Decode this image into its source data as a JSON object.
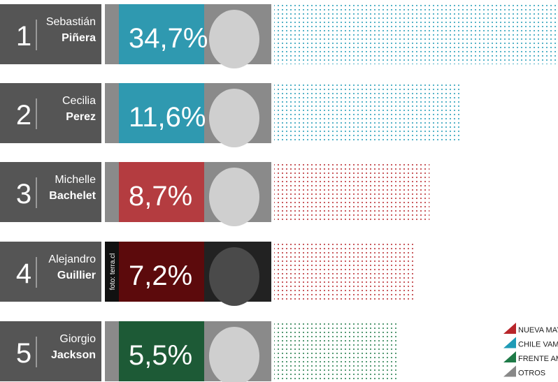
{
  "chart_data": {
    "type": "bar",
    "categories": [
      "Piñera",
      "Perez",
      "Bachelet",
      "Guillier",
      "Jackson"
    ],
    "ranks": [
      1,
      2,
      3,
      4,
      5
    ],
    "first_names": [
      "Sebastián",
      "Cecilia",
      "Michelle",
      "Alejandro",
      "Giorgio"
    ],
    "values": [
      34.7,
      11.6,
      8.7,
      7.2,
      5.5
    ],
    "value_labels": [
      "34,7%",
      "11,6%",
      "8,7%",
      "7,2%",
      "5,5%"
    ],
    "colors": [
      "#1f9bb6",
      "#1f9bb6",
      "#b8262b",
      "#b8262b",
      "#1e7a47"
    ],
    "photo_credit": "foto: terra.cl",
    "legend": [
      {
        "label": "NUEVA MAYO",
        "color": "#b8262b"
      },
      {
        "label": "CHILE VAMO",
        "color": "#1f9bb6"
      },
      {
        "label": "FRENTE AMP",
        "color": "#1e7a47"
      },
      {
        "label": "OTROS",
        "color": "#888888"
      }
    ]
  }
}
